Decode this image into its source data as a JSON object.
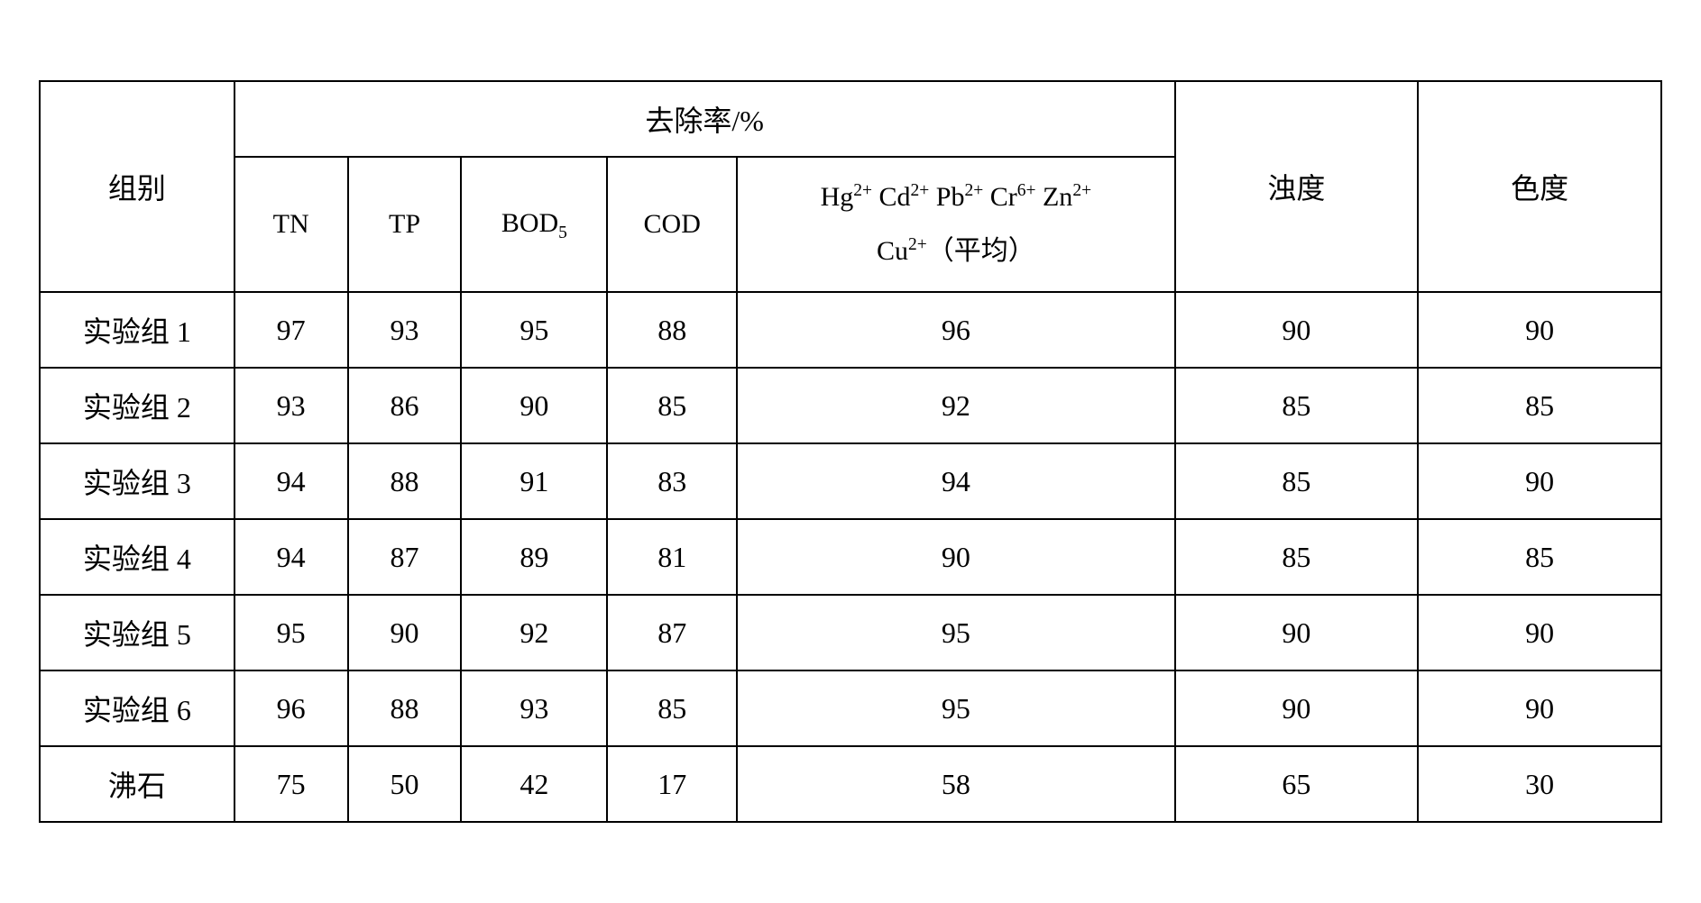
{
  "table": {
    "type": "table",
    "border_color": "#000000",
    "border_width": 2,
    "background_color": "#ffffff",
    "text_color": "#000000",
    "font_family": "SimSun",
    "header_fontsize": 32,
    "cell_fontsize": 32,
    "headers": {
      "group": "组别",
      "removal_rate": "去除率/%",
      "turbidity": "浊度",
      "chroma": "色度",
      "sub": {
        "tn": "TN",
        "tp": "TP",
        "bod5_prefix": "BOD",
        "bod5_sub": "5",
        "cod": "COD",
        "metals_line1_parts": [
          "Hg",
          "2+",
          " Cd",
          "2+",
          " Pb",
          "2+",
          " Cr",
          "6+",
          " Zn",
          "2+"
        ],
        "metals_line2_parts": [
          "Cu",
          "2+",
          "（平均）"
        ]
      }
    },
    "column_widths_pct": [
      12,
      7,
      7,
      9,
      8,
      27,
      15,
      15
    ],
    "rows": [
      {
        "label": "实验组 1",
        "tn": "97",
        "tp": "93",
        "bod5": "95",
        "cod": "88",
        "metals": "96",
        "turbidity": "90",
        "chroma": "90"
      },
      {
        "label": "实验组 2",
        "tn": "93",
        "tp": "86",
        "bod5": "90",
        "cod": "85",
        "metals": "92",
        "turbidity": "85",
        "chroma": "85"
      },
      {
        "label": "实验组 3",
        "tn": "94",
        "tp": "88",
        "bod5": "91",
        "cod": "83",
        "metals": "94",
        "turbidity": "85",
        "chroma": "90"
      },
      {
        "label": "实验组 4",
        "tn": "94",
        "tp": "87",
        "bod5": "89",
        "cod": "81",
        "metals": "90",
        "turbidity": "85",
        "chroma": "85"
      },
      {
        "label": "实验组 5",
        "tn": "95",
        "tp": "90",
        "bod5": "92",
        "cod": "87",
        "metals": "95",
        "turbidity": "90",
        "chroma": "90"
      },
      {
        "label": "实验组 6",
        "tn": "96",
        "tp": "88",
        "bod5": "93",
        "cod": "85",
        "metals": "95",
        "turbidity": "90",
        "chroma": "90"
      },
      {
        "label": "沸石",
        "tn": "75",
        "tp": "50",
        "bod5": "42",
        "cod": "17",
        "metals": "58",
        "turbidity": "65",
        "chroma": "30"
      }
    ]
  }
}
